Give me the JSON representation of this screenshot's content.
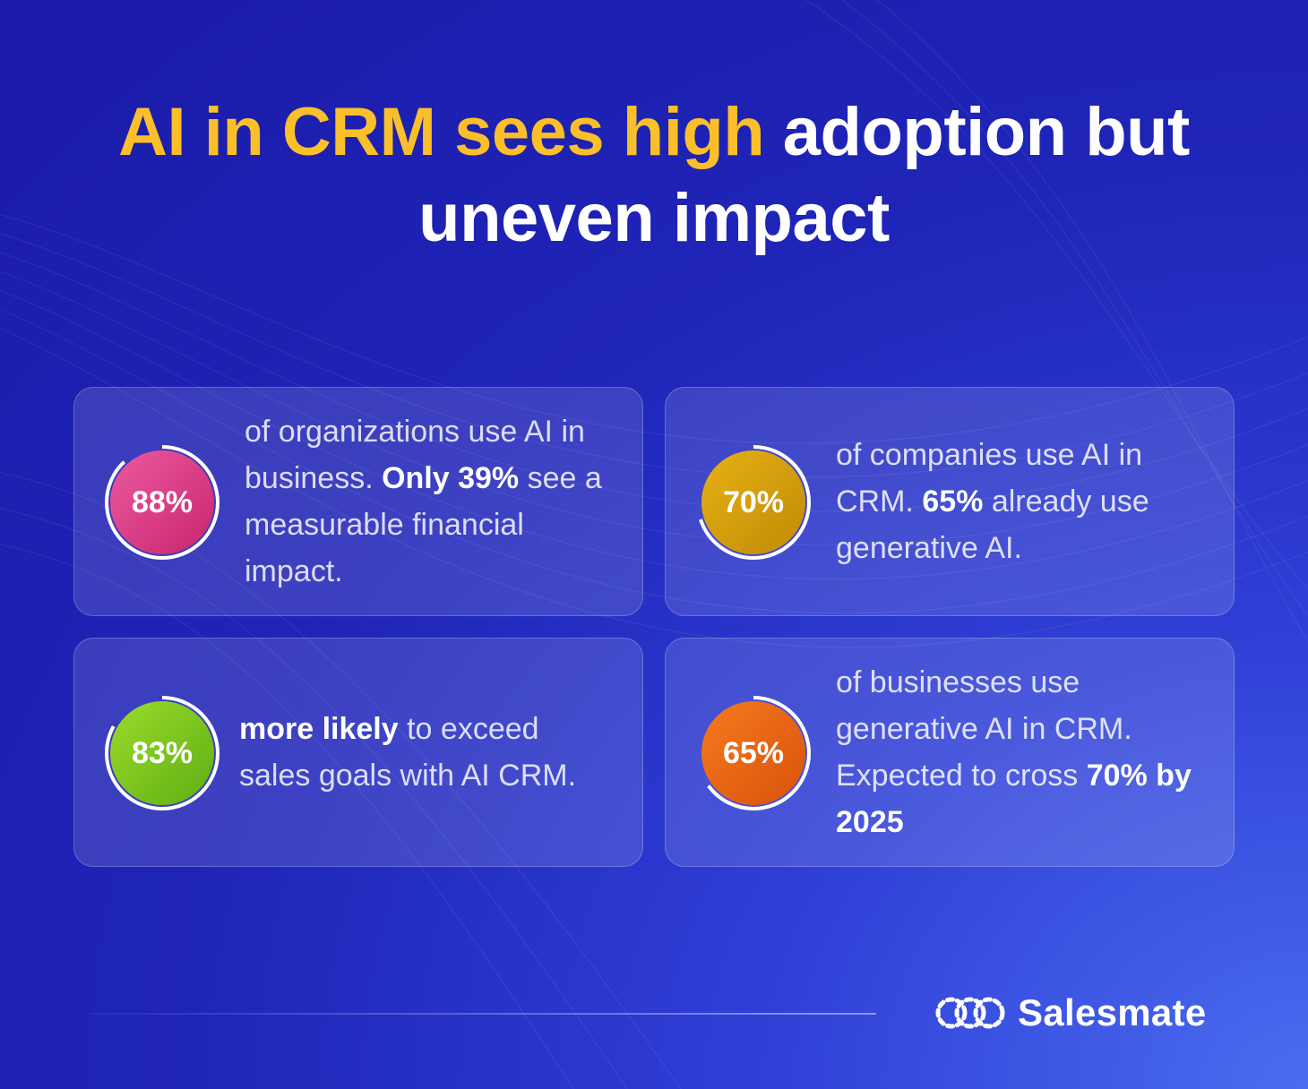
{
  "title": {
    "highlight": "AI in CRM sees high",
    "rest_line1": " adoption but",
    "line2": "uneven impact"
  },
  "colors": {
    "background": "#1f25b8",
    "highlight": "#fbbf2a",
    "card_pink": "#e0478c",
    "card_gold": "#d9a00e",
    "card_green": "#7cc81e",
    "card_orange": "#ea5e12"
  },
  "cards": [
    {
      "stat": "88%",
      "value": 88,
      "segments": [
        {
          "text": "of organizations use AI in business. ",
          "bold": false
        },
        {
          "text": "Only 39%",
          "bold": true
        },
        {
          "text": " see a measurable financial impact.",
          "bold": false
        }
      ]
    },
    {
      "stat": "70%",
      "value": 70,
      "segments": [
        {
          "text": "of companies use AI in CRM. ",
          "bold": false
        },
        {
          "text": "65%",
          "bold": true
        },
        {
          "text": "  already use generative AI.",
          "bold": false
        }
      ]
    },
    {
      "stat": "83%",
      "value": 83,
      "segments": [
        {
          "text": "more likely",
          "bold": true
        },
        {
          "text": " to exceed sales goals with AI CRM.",
          "bold": false
        }
      ]
    },
    {
      "stat": "65%",
      "value": 65,
      "segments": [
        {
          "text": "of businesses use generative AI in CRM. Expected to cross ",
          "bold": false
        },
        {
          "text": "70% by 2025",
          "bold": true
        }
      ]
    }
  ],
  "brand": {
    "name": "Salesmate",
    "icon": "salesmate-logo-icon"
  }
}
